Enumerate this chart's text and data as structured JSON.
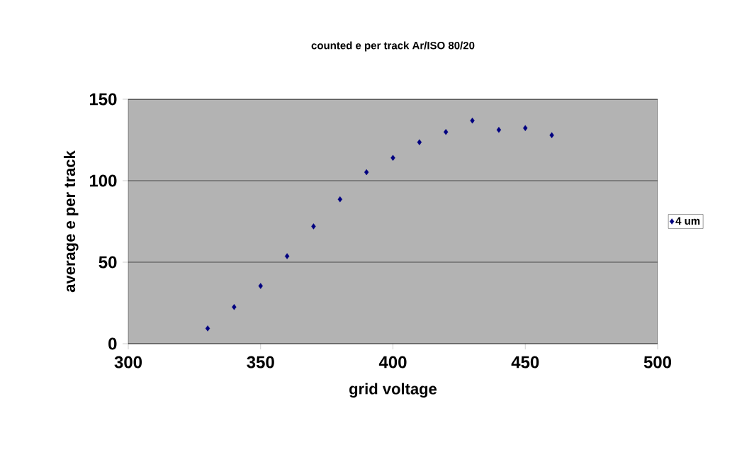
{
  "chart_data": {
    "type": "scatter",
    "title": "counted e per track Ar/ISO 80/20",
    "xlabel": "grid voltage",
    "ylabel": "average e per track",
    "x": [
      330,
      340,
      350,
      360,
      370,
      380,
      390,
      400,
      410,
      420,
      430,
      440,
      450,
      460
    ],
    "series": [
      {
        "name": "4 um",
        "color": "#000080",
        "values": [
          9.4,
          22.5,
          35.4,
          53.7,
          72,
          88.6,
          105.2,
          114,
          123.6,
          129.9,
          136.9,
          131.2,
          132.3,
          127.9
        ]
      }
    ],
    "xlim": [
      300,
      500
    ],
    "xticks": [
      300,
      350,
      400,
      450,
      500
    ],
    "ylim": [
      0,
      150
    ],
    "yticks": [
      0,
      50,
      100,
      150
    ],
    "grid": "y",
    "legend": "right",
    "marker": "diamond"
  }
}
